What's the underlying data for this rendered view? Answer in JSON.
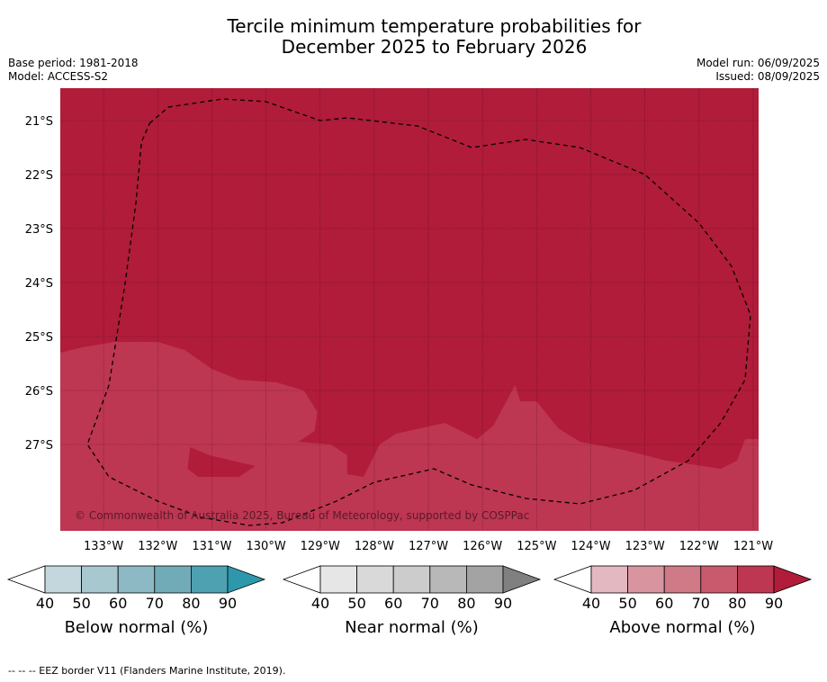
{
  "chart": {
    "title_line1": "Tercile minimum temperature probabilities for",
    "title_line2": "December 2025 to February 2026",
    "base_period": "Base period: 1981-2018",
    "model": "Model: ACCESS-S2",
    "model_run": "Model run: 06/09/2025",
    "issued": "Issued: 08/09/2025",
    "copyright": "© Commonwealth of Australia 2025, Bureau of Meteorology, supported by COSPPac",
    "footnote": "--  --  -- EEZ border V11 (Flanders Marine Institute, 2019)."
  },
  "chart_data": {
    "type": "heatmap",
    "xlim": [
      -133.8,
      -120.9
    ],
    "ylim": [
      -28.6,
      -20.4
    ],
    "x_ticks": [
      -133,
      -132,
      -131,
      -130,
      -129,
      -128,
      -127,
      -126,
      -125,
      -124,
      -123,
      -122,
      -121
    ],
    "x_tick_labels": [
      "133°W",
      "132°W",
      "131°W",
      "130°W",
      "129°W",
      "128°W",
      "127°W",
      "126°W",
      "125°W",
      "124°W",
      "123°W",
      "122°W",
      "121°W"
    ],
    "y_ticks": [
      -21,
      -22,
      -23,
      -24,
      -25,
      -26,
      -27
    ],
    "y_tick_labels": [
      "21°S",
      "22°S",
      "23°S",
      "24°S",
      "25°S",
      "26°S",
      "27°S"
    ],
    "grid": true,
    "fields": [
      {
        "category": "Above normal",
        "probability_range": "80-90",
        "color": "#b01c3a",
        "region": "background"
      },
      {
        "category": "Above normal",
        "probability_range": "70-80",
        "color": "#bd3652",
        "region": [
          [
            -133.8,
            -25.3
          ],
          [
            -133.4,
            -25.2
          ],
          [
            -132.8,
            -25.1
          ],
          [
            -132.0,
            -25.1
          ],
          [
            -131.5,
            -25.25
          ],
          [
            -131.0,
            -25.6
          ],
          [
            -130.5,
            -25.8
          ],
          [
            -129.8,
            -25.85
          ],
          [
            -129.3,
            -26.0
          ],
          [
            -129.05,
            -26.4
          ],
          [
            -129.1,
            -26.75
          ],
          [
            -129.4,
            -26.95
          ],
          [
            -128.8,
            -27.0
          ],
          [
            -128.5,
            -27.2
          ],
          [
            -128.5,
            -27.55
          ],
          [
            -128.2,
            -27.6
          ],
          [
            -127.9,
            -27.0
          ],
          [
            -127.6,
            -26.8
          ],
          [
            -126.7,
            -26.6
          ],
          [
            -126.3,
            -26.8
          ],
          [
            -126.1,
            -26.9
          ],
          [
            -125.8,
            -26.65
          ],
          [
            -125.4,
            -25.9
          ],
          [
            -125.3,
            -26.2
          ],
          [
            -125.0,
            -26.2
          ],
          [
            -124.6,
            -26.7
          ],
          [
            -124.2,
            -26.95
          ],
          [
            -123.4,
            -27.1
          ],
          [
            -122.6,
            -27.3
          ],
          [
            -121.6,
            -27.45
          ],
          [
            -121.3,
            -27.3
          ],
          [
            -121.15,
            -26.9
          ],
          [
            -120.9,
            -26.9
          ],
          [
            -120.9,
            -28.6
          ],
          [
            -133.8,
            -28.6
          ]
        ]
      },
      {
        "category": "Above normal",
        "probability_range": "80-90",
        "color": "#b01c3a",
        "region": [
          [
            -131.4,
            -27.05
          ],
          [
            -131.05,
            -27.2
          ],
          [
            -130.2,
            -27.4
          ],
          [
            -130.5,
            -27.6
          ],
          [
            -131.25,
            -27.6
          ],
          [
            -131.45,
            -27.45
          ]
        ]
      }
    ],
    "eez_border": [
      [
        -132.15,
        -21.05
      ],
      [
        -131.8,
        -20.75
      ],
      [
        -130.8,
        -20.6
      ],
      [
        -130.0,
        -20.65
      ],
      [
        -129.0,
        -21.0
      ],
      [
        -128.5,
        -20.95
      ],
      [
        -127.2,
        -21.1
      ],
      [
        -126.2,
        -21.5
      ],
      [
        -125.2,
        -21.35
      ],
      [
        -124.2,
        -21.5
      ],
      [
        -123.0,
        -22.0
      ],
      [
        -122.0,
        -22.9
      ],
      [
        -121.4,
        -23.7
      ],
      [
        -121.05,
        -24.6
      ],
      [
        -121.15,
        -25.8
      ],
      [
        -121.6,
        -26.6
      ],
      [
        -122.2,
        -27.3
      ],
      [
        -123.2,
        -27.85
      ],
      [
        -124.2,
        -28.1
      ],
      [
        -125.2,
        -28.0
      ],
      [
        -126.2,
        -27.75
      ],
      [
        -126.9,
        -27.45
      ],
      [
        -128.0,
        -27.7
      ],
      [
        -128.7,
        -28.05
      ],
      [
        -129.7,
        -28.45
      ],
      [
        -130.3,
        -28.5
      ],
      [
        -131.2,
        -28.35
      ],
      [
        -132.0,
        -28.05
      ],
      [
        -132.9,
        -27.6
      ],
      [
        -133.3,
        -27.0
      ],
      [
        -132.9,
        -25.9
      ],
      [
        -132.6,
        -24.0
      ],
      [
        -132.4,
        -22.5
      ],
      [
        -132.3,
        -21.4
      ],
      [
        -132.15,
        -21.05
      ]
    ],
    "legend": [
      {
        "label": "Below normal (%)",
        "ticks": [
          "40",
          "50",
          "60",
          "70",
          "80",
          "90"
        ],
        "colors": [
          "#ffffff",
          "#c3d7dc",
          "#a8c8cf",
          "#8cb9c3",
          "#71abb8",
          "#4ea1b0",
          "#2d98ab"
        ]
      },
      {
        "label": "Near normal (%)",
        "ticks": [
          "40",
          "50",
          "60",
          "70",
          "80",
          "90"
        ],
        "colors": [
          "#ffffff",
          "#e6e6e6",
          "#d9d9d9",
          "#cccccc",
          "#b8b8b8",
          "#a3a3a3",
          "#808080"
        ]
      },
      {
        "label": "Above normal (%)",
        "ticks": [
          "40",
          "50",
          "60",
          "70",
          "80",
          "90"
        ],
        "colors": [
          "#ffffff",
          "#e3b8c0",
          "#d8959f",
          "#cf7a86",
          "#c9596d",
          "#bd3652",
          "#b01c3a"
        ]
      }
    ]
  }
}
